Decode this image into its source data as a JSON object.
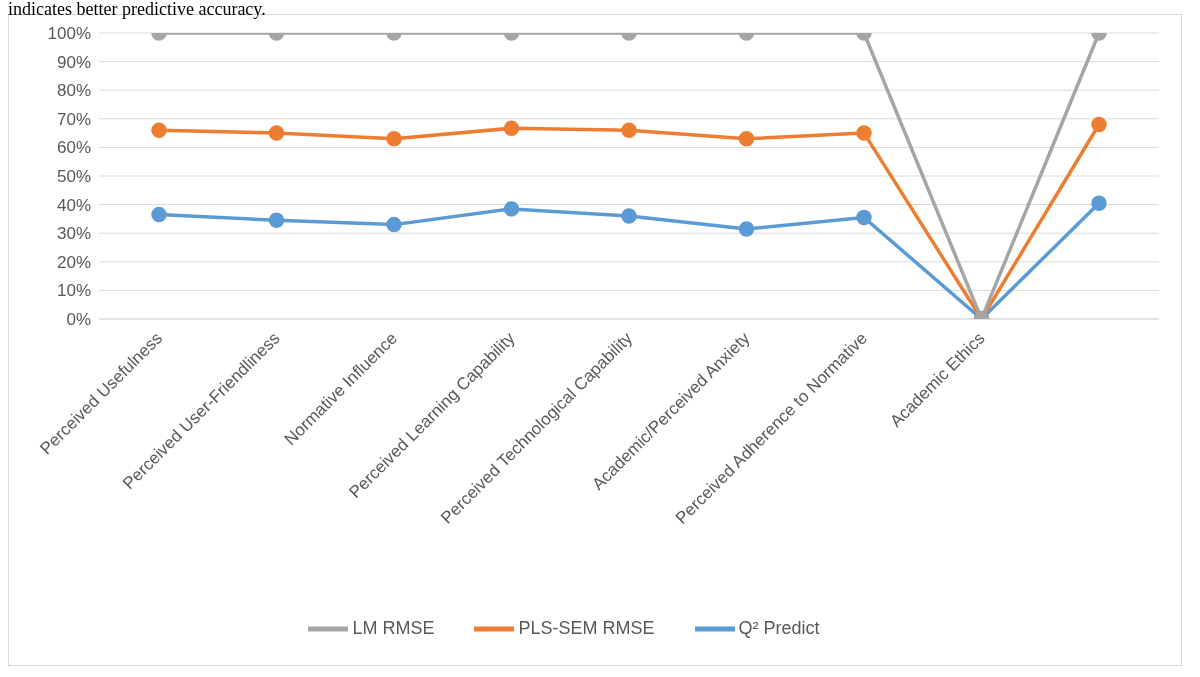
{
  "chart_data": {
    "type": "line",
    "annotations": [
      "indicates better predictive accuracy."
    ],
    "categories": [
      "Perceived Usefulness",
      "Perceived User-Friendliness",
      "Normative Influence",
      "Perceived Learning Capability",
      "Perceived Technological Capability",
      "Academic/Perceived Anxiety",
      "Perceived Adherence to Normative",
      "Academic Ethics",
      null
    ],
    "series": [
      {
        "name": "Q² Predict",
        "color": "#5b9bd5",
        "values": [
          36.5,
          34.5,
          33,
          38.5,
          36,
          31.5,
          35.5,
          0,
          40.5
        ]
      },
      {
        "name": "PLS-SEM RMSE",
        "color": "#ed7d31",
        "values": [
          66,
          65,
          63,
          66.7,
          66,
          63,
          65,
          0,
          68
        ]
      },
      {
        "name": "LM RMSE",
        "color": "#a5a5a5",
        "values": [
          100,
          100,
          100,
          100,
          100,
          100,
          100,
          0,
          100
        ]
      }
    ],
    "ylim": [
      0,
      100
    ],
    "yticks": [
      {
        "value": 0,
        "label": "0%"
      },
      {
        "value": 10,
        "label": "10%"
      },
      {
        "value": 20,
        "label": "20%"
      },
      {
        "value": 30,
        "label": "30%"
      },
      {
        "value": 40,
        "label": "40%"
      },
      {
        "value": 50,
        "label": "50%"
      },
      {
        "value": 60,
        "label": "60%"
      },
      {
        "value": 70,
        "label": "70%"
      },
      {
        "value": 80,
        "label": "80%"
      },
      {
        "value": 90,
        "label": "90%"
      },
      {
        "value": 100,
        "label": "100%"
      }
    ],
    "grid": "y",
    "legend": "bottom",
    "marker": "circle",
    "line_style": "solid"
  }
}
